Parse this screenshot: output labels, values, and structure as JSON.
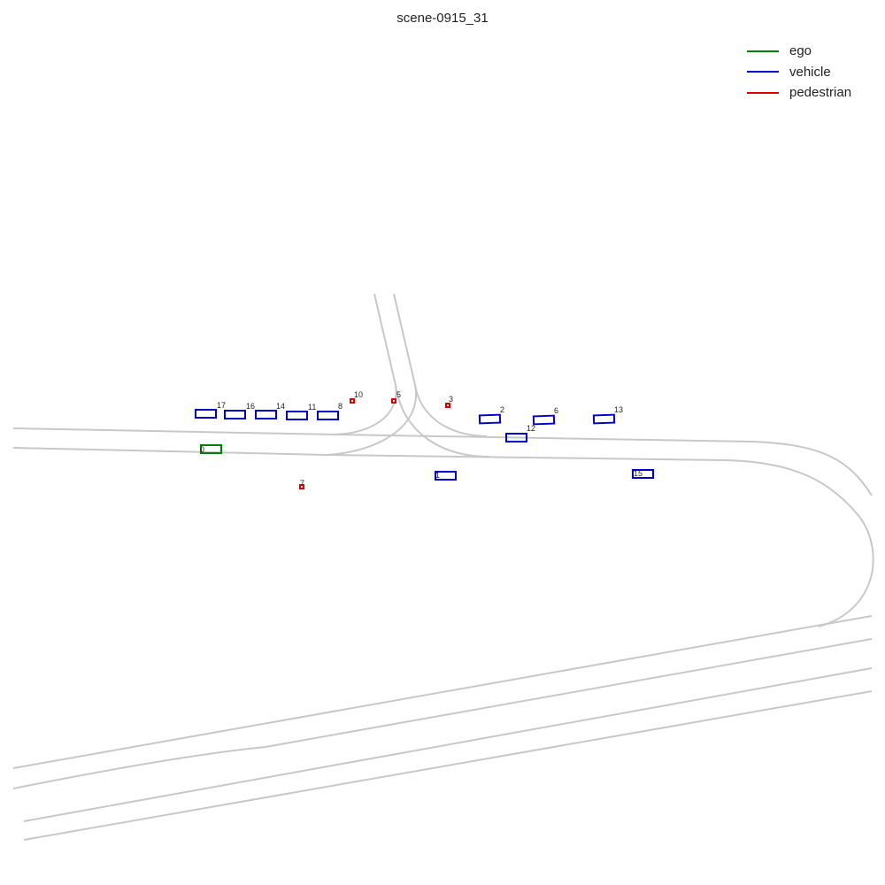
{
  "title": "scene-0915_31",
  "legend": [
    {
      "label": "ego",
      "color": "#008000"
    },
    {
      "label": "vehicle",
      "color": "#0000cc"
    },
    {
      "label": "pedestrian",
      "color": "#e00000"
    }
  ],
  "agents": [
    {
      "id": "0",
      "category": "ego"
    },
    {
      "id": "17",
      "category": "vehicle"
    },
    {
      "id": "16",
      "category": "vehicle"
    },
    {
      "id": "14",
      "category": "vehicle"
    },
    {
      "id": "11",
      "category": "vehicle"
    },
    {
      "id": "8",
      "category": "vehicle"
    },
    {
      "id": "2",
      "category": "vehicle"
    },
    {
      "id": "6",
      "category": "vehicle"
    },
    {
      "id": "13",
      "category": "vehicle"
    },
    {
      "id": "12",
      "category": "vehicle"
    },
    {
      "id": "1",
      "category": "vehicle"
    },
    {
      "id": "15",
      "category": "vehicle"
    },
    {
      "id": "10",
      "category": "pedestrian"
    },
    {
      "id": "5",
      "category": "pedestrian"
    },
    {
      "id": "3",
      "category": "pedestrian"
    },
    {
      "id": "7",
      "category": "pedestrian"
    }
  ]
}
